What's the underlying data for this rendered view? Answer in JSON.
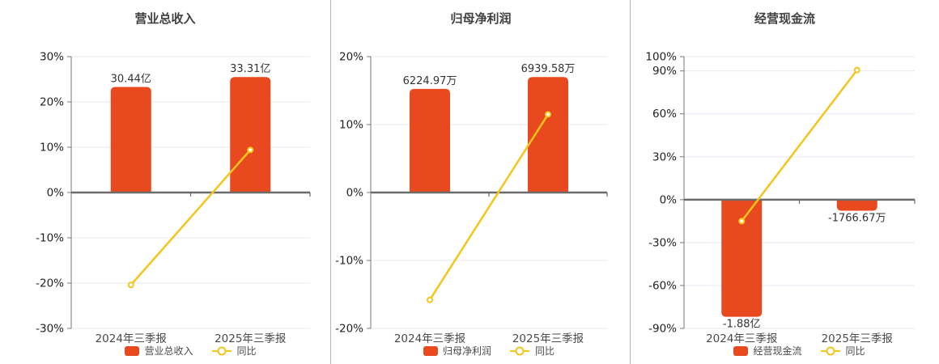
{
  "colors": {
    "bar": "#e8491e",
    "line": "#f5c51b",
    "marker_fill": "#ffffff",
    "grid": "#e4e8f3",
    "zero_axis": "#6b6b6b",
    "axis": "#777777",
    "separator": "#b5b5b5",
    "title_text": "#404040",
    "axis_text": "#222222",
    "label_text": "#333333",
    "background": "#ffffff"
  },
  "chart_data": [
    {
      "type": "bar",
      "title": "营业总收入",
      "categories": [
        "2024年三季报",
        "2025年三季报"
      ],
      "bar_series": {
        "name": "营业总收入",
        "unit": "亿",
        "values": [
          30.44,
          33.31
        ],
        "labels": [
          "30.44亿",
          "33.31亿"
        ]
      },
      "line_series": {
        "name": "同比",
        "unit": "%",
        "values": [
          -20.4,
          9.4
        ]
      },
      "y_axis": {
        "min": -30,
        "max": 30,
        "tick_values": [
          30,
          20,
          10,
          0,
          -10,
          -20,
          -30
        ],
        "tick_labels": [
          "30%",
          "20%",
          "10%",
          "0%",
          "-10%",
          "-20%",
          "-30%"
        ]
      },
      "grid": true,
      "legend_position": "bottom",
      "bar_fill_ratio": 0.85
    },
    {
      "type": "bar",
      "title": "归母净利润",
      "categories": [
        "2024年三季报",
        "2025年三季报"
      ],
      "bar_series": {
        "name": "归母净利润",
        "unit": "万",
        "values": [
          6224.97,
          6939.58
        ],
        "labels": [
          "6224.97万",
          "6939.58万"
        ]
      },
      "line_series": {
        "name": "同比",
        "unit": "%",
        "values": [
          -15.8,
          11.5
        ]
      },
      "y_axis": {
        "min": -20,
        "max": 20,
        "tick_values": [
          20,
          10,
          0,
          -10,
          -20
        ],
        "tick_labels": [
          "20%",
          "10%",
          "0%",
          "-10%",
          "-20%"
        ]
      },
      "grid": true,
      "legend_position": "bottom",
      "bar_fill_ratio": 0.85
    },
    {
      "type": "bar",
      "title": "经营现金流",
      "categories": [
        "2024年三季报",
        "2025年三季报"
      ],
      "bar_series": {
        "name": "经营现金流",
        "unit": "亿",
        "values": [
          -1.88,
          -0.176667
        ],
        "labels": [
          "-1.88亿",
          "-1766.67万"
        ]
      },
      "line_series": {
        "name": "同比",
        "unit": "%",
        "values": [
          -15,
          90.6
        ]
      },
      "y_axis": {
        "min": -90,
        "max": 100,
        "tick_values": [
          100,
          90,
          60,
          30,
          0,
          -30,
          -60,
          -90
        ],
        "tick_labels": [
          "100%",
          "90%",
          "60%",
          "30%",
          "0%",
          "-30%",
          "-60%",
          "-90%"
        ]
      },
      "grid": true,
      "legend_position": "bottom",
      "bar_fill_ratio": 0.91
    }
  ]
}
